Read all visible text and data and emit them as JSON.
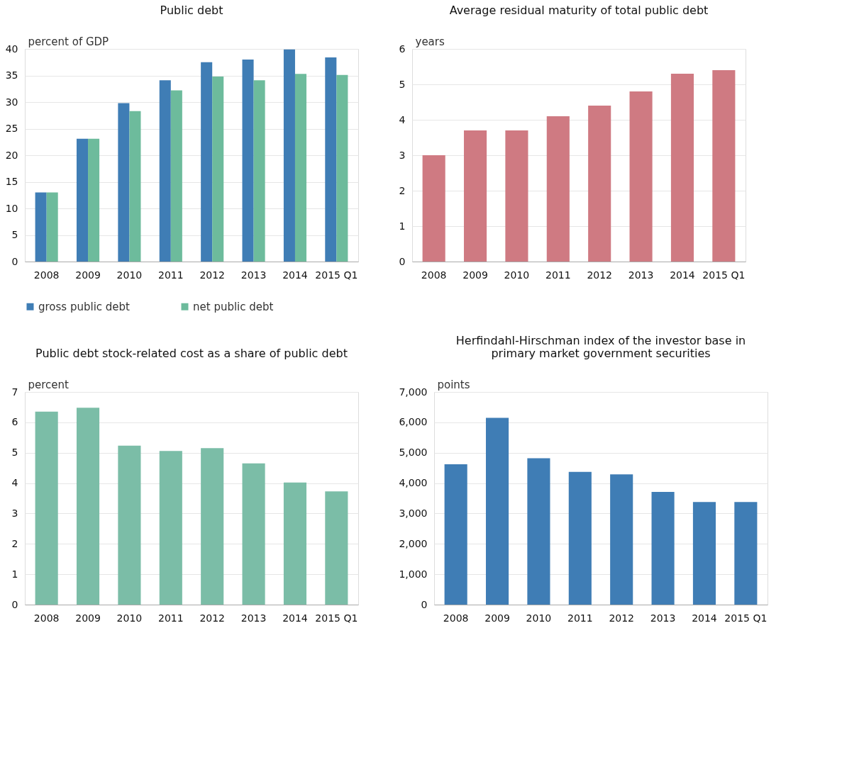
{
  "chart_data": [
    {
      "type": "bar",
      "title": "Public debt",
      "ylabel": "percent of GDP",
      "categories": [
        "2008",
        "2009",
        "2010",
        "2011",
        "2012",
        "2013",
        "2014",
        "2015 Q1"
      ],
      "series": [
        {
          "name": "gross public debt",
          "color": "#3f7db5",
          "values": [
            13.0,
            23.1,
            29.8,
            34.1,
            37.5,
            38.0,
            39.9,
            38.4
          ]
        },
        {
          "name": "net public debt",
          "color": "#6dbb9c",
          "values": [
            13.0,
            23.1,
            28.3,
            32.2,
            34.8,
            34.1,
            35.3,
            35.1
          ]
        }
      ],
      "ylim": [
        0,
        40
      ],
      "yticks": [
        0,
        5,
        10,
        15,
        20,
        25,
        30,
        35,
        40
      ],
      "grid": "y",
      "legend": "bottom"
    },
    {
      "type": "bar",
      "title": "Average residual maturity of total public debt",
      "ylabel": "years",
      "categories": [
        "2008",
        "2009",
        "2010",
        "2011",
        "2012",
        "2013",
        "2014",
        "2015 Q1"
      ],
      "series": [
        {
          "color": "#cf7a82",
          "values": [
            3.0,
            3.7,
            3.7,
            4.1,
            4.4,
            4.8,
            5.3,
            5.4
          ]
        }
      ],
      "ylim": [
        0,
        6
      ],
      "yticks": [
        0,
        1,
        2,
        3,
        4,
        5,
        6
      ],
      "grid": "y"
    },
    {
      "type": "bar",
      "title": "Public debt stock-related cost as a share of public debt",
      "ylabel": "percent",
      "categories": [
        "2008",
        "2009",
        "2010",
        "2011",
        "2012",
        "2013",
        "2014",
        "2015 Q1"
      ],
      "series": [
        {
          "color": "#7bbda7",
          "values": [
            6.35,
            6.48,
            5.23,
            5.06,
            5.15,
            4.65,
            4.02,
            3.73
          ]
        }
      ],
      "ylim": [
        0,
        7
      ],
      "yticks": [
        0,
        1,
        2,
        3,
        4,
        5,
        6,
        7
      ],
      "grid": "y"
    },
    {
      "type": "bar",
      "title": "Herfindahl-Hirschman index of the investor base in primary market government securities",
      "ylabel": "points",
      "categories": [
        "2008",
        "2009",
        "2010",
        "2011",
        "2012",
        "2013",
        "2014",
        "2015 Q1"
      ],
      "series": [
        {
          "color": "#3f7db5",
          "values": [
            4620,
            6150,
            4820,
            4370,
            4290,
            3710,
            3380,
            3380
          ]
        }
      ],
      "ylim": [
        0,
        7000
      ],
      "yticks": [
        0,
        {
          "value": 1000,
          "label": "1,000"
        },
        {
          "value": 2000,
          "label": "2,000"
        },
        {
          "value": 3000,
          "label": "3,000"
        },
        {
          "value": 4000,
          "label": "4,000"
        },
        {
          "value": 5000,
          "label": "5,000"
        },
        {
          "value": 6000,
          "label": "6,000"
        },
        {
          "value": 7000,
          "label": "7,000"
        }
      ],
      "grid": "y"
    }
  ]
}
